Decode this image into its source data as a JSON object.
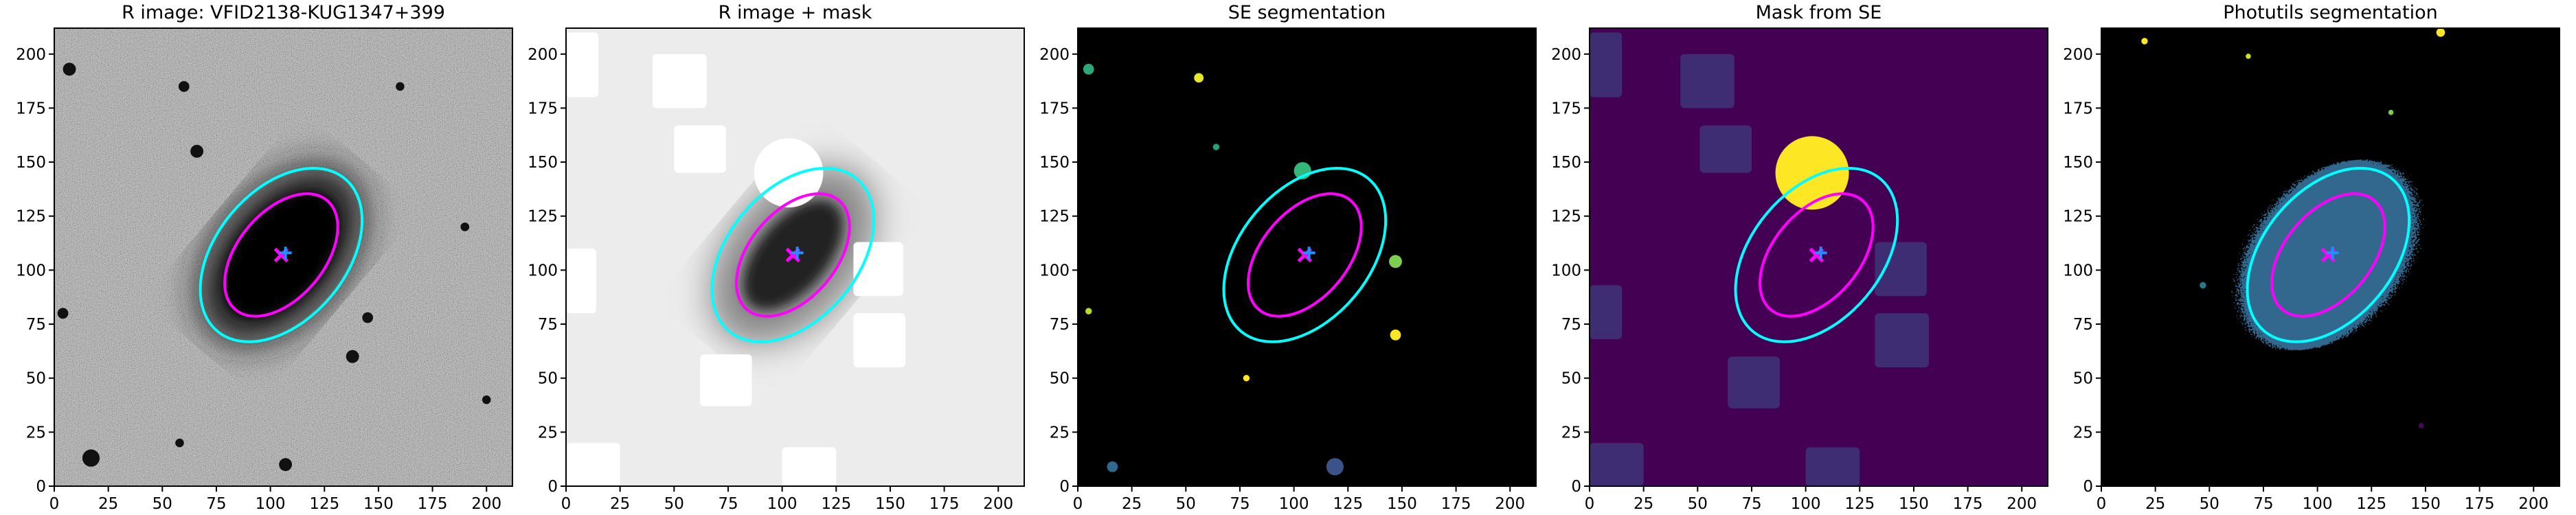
{
  "chart_data": [
    {
      "type": "image",
      "title": "R image: VFID2138-KUG1347+399",
      "background": "#808080",
      "xlim": [
        0,
        212
      ],
      "ylim": [
        0,
        212
      ],
      "xticks": [
        0,
        25,
        50,
        75,
        100,
        125,
        150,
        175,
        200
      ],
      "yticks": [
        0,
        25,
        50,
        75,
        100,
        125,
        150,
        175,
        200
      ]
    },
    {
      "type": "image",
      "title": "R image + mask",
      "background": "#ececec",
      "xlim": [
        0,
        212
      ],
      "ylim": [
        0,
        212
      ],
      "xticks": [
        0,
        25,
        50,
        75,
        100,
        125,
        150,
        175,
        200
      ],
      "yticks": [
        0,
        25,
        50,
        75,
        100,
        125,
        150,
        175,
        200
      ]
    },
    {
      "type": "image",
      "title": "SE segmentation",
      "background": "#000000",
      "xlim": [
        0,
        212
      ],
      "ylim": [
        0,
        212
      ],
      "xticks": [
        0,
        25,
        50,
        75,
        100,
        125,
        150,
        175,
        200
      ],
      "yticks": [
        0,
        25,
        50,
        75,
        100,
        125,
        150,
        175,
        200
      ]
    },
    {
      "type": "image",
      "title": "Mask from SE",
      "background": "#440154",
      "xlim": [
        0,
        212
      ],
      "ylim": [
        0,
        212
      ],
      "xticks": [
        0,
        25,
        50,
        75,
        100,
        125,
        150,
        175,
        200
      ],
      "yticks": [
        0,
        25,
        50,
        75,
        100,
        125,
        150,
        175,
        200
      ]
    },
    {
      "type": "image",
      "title": "Photutils segmentation",
      "background": "#000000",
      "xlim": [
        0,
        212
      ],
      "ylim": [
        0,
        212
      ],
      "xticks": [
        0,
        25,
        50,
        75,
        100,
        125,
        150,
        175,
        200
      ],
      "yticks": [
        0,
        25,
        50,
        75,
        100,
        125,
        150,
        175,
        200
      ]
    }
  ]
}
